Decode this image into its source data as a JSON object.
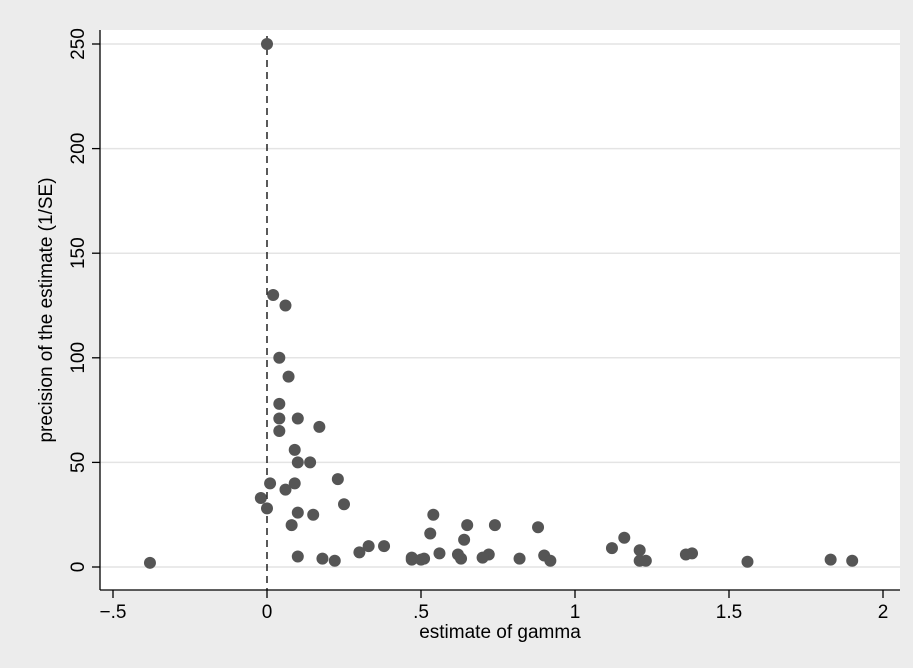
{
  "chart_data": {
    "type": "scatter",
    "xlabel": "estimate of gamma",
    "ylabel": "precision of the estimate (1/SE)",
    "xlim": [
      -0.5,
      2.05
    ],
    "ylim": [
      0,
      250
    ],
    "x_ticks": [
      -0.5,
      0,
      0.5,
      1,
      1.5,
      2
    ],
    "x_tick_labels": [
      "−.5",
      "0",
      ".5",
      "1",
      "1.5",
      "2"
    ],
    "y_ticks": [
      0,
      50,
      100,
      150,
      200,
      250
    ],
    "y_tick_labels": [
      "0",
      "50",
      "100",
      "150",
      "200",
      "250"
    ],
    "grid": "horizontal",
    "reference_line": {
      "x": 0,
      "style": "dashed"
    },
    "marker_color": "#555555",
    "plot_background": "#ffffff",
    "figure_background": "#ececec",
    "gridline_color": "#e4e4e4",
    "points": [
      {
        "x": 0.0,
        "y": 250
      },
      {
        "x": 0.02,
        "y": 130
      },
      {
        "x": 0.06,
        "y": 125
      },
      {
        "x": 0.04,
        "y": 100
      },
      {
        "x": 0.07,
        "y": 91
      },
      {
        "x": 0.04,
        "y": 78
      },
      {
        "x": 0.04,
        "y": 71
      },
      {
        "x": 0.1,
        "y": 71
      },
      {
        "x": 0.04,
        "y": 65
      },
      {
        "x": 0.17,
        "y": 67
      },
      {
        "x": 0.09,
        "y": 56
      },
      {
        "x": 0.1,
        "y": 50
      },
      {
        "x": 0.14,
        "y": 50
      },
      {
        "x": 0.23,
        "y": 42
      },
      {
        "x": 0.01,
        "y": 40
      },
      {
        "x": 0.09,
        "y": 40
      },
      {
        "x": 0.06,
        "y": 37
      },
      {
        "x": -0.02,
        "y": 33
      },
      {
        "x": 0.25,
        "y": 30
      },
      {
        "x": 0.0,
        "y": 28
      },
      {
        "x": 0.1,
        "y": 26
      },
      {
        "x": 0.15,
        "y": 25
      },
      {
        "x": 0.54,
        "y": 25
      },
      {
        "x": 0.08,
        "y": 20
      },
      {
        "x": 0.65,
        "y": 20
      },
      {
        "x": 0.74,
        "y": 20
      },
      {
        "x": 0.88,
        "y": 19
      },
      {
        "x": 0.53,
        "y": 16
      },
      {
        "x": 1.16,
        "y": 14
      },
      {
        "x": 0.64,
        "y": 13
      },
      {
        "x": 0.33,
        "y": 10
      },
      {
        "x": 0.38,
        "y": 10
      },
      {
        "x": 1.12,
        "y": 9
      },
      {
        "x": 1.21,
        "y": 8
      },
      {
        "x": 0.3,
        "y": 7
      },
      {
        "x": 0.56,
        "y": 6.5
      },
      {
        "x": 0.62,
        "y": 6
      },
      {
        "x": 0.72,
        "y": 6
      },
      {
        "x": 1.36,
        "y": 6
      },
      {
        "x": 1.38,
        "y": 6.5
      },
      {
        "x": 0.1,
        "y": 5
      },
      {
        "x": 0.47,
        "y": 4.5
      },
      {
        "x": 0.51,
        "y": 4
      },
      {
        "x": 0.63,
        "y": 4
      },
      {
        "x": 0.7,
        "y": 4.5
      },
      {
        "x": 0.9,
        "y": 5.5
      },
      {
        "x": 0.18,
        "y": 4
      },
      {
        "x": 0.47,
        "y": 3.5
      },
      {
        "x": 0.5,
        "y": 3.5
      },
      {
        "x": 0.82,
        "y": 4
      },
      {
        "x": 0.22,
        "y": 3
      },
      {
        "x": 0.92,
        "y": 3
      },
      {
        "x": 1.21,
        "y": 3
      },
      {
        "x": 1.23,
        "y": 3
      },
      {
        "x": 1.83,
        "y": 3.5
      },
      {
        "x": 1.9,
        "y": 3
      },
      {
        "x": -0.38,
        "y": 2
      },
      {
        "x": 1.56,
        "y": 2.5
      }
    ]
  }
}
